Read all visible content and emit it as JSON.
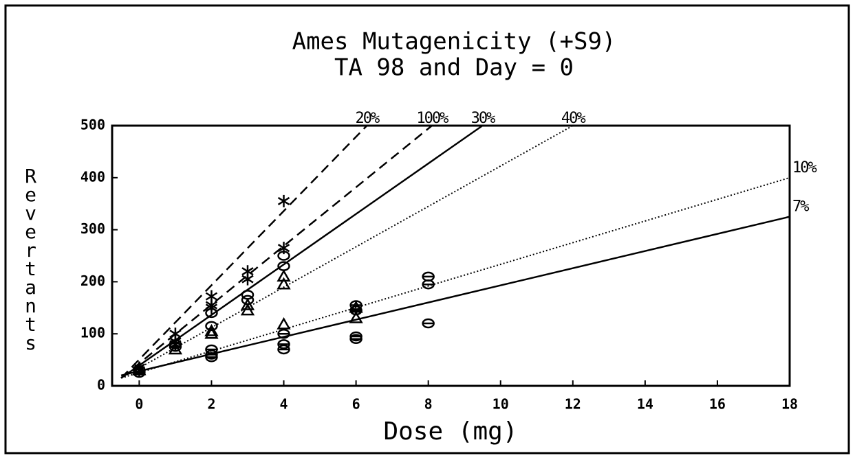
{
  "chart_data": {
    "type": "scatter",
    "title": "Ames Mutagenicity (+S9)",
    "subtitle": "TA 98 and Day = 0",
    "x_label": "Dose (mg)",
    "y_label": "Revertants",
    "xlim": [
      -0.75,
      18
    ],
    "ylim": [
      0,
      500
    ],
    "xticks": [
      0,
      2,
      4,
      6,
      8,
      10,
      12,
      14,
      16,
      18
    ],
    "yticks": [
      0,
      100,
      200,
      300,
      400,
      500
    ],
    "color": "#000000",
    "lines": [
      {
        "label": "20%",
        "style": "dashed",
        "x": [
          -0.5,
          6.3
        ],
        "y": [
          15,
          500
        ]
      },
      {
        "label": "100%",
        "style": "dashed",
        "x": [
          -0.5,
          8.1
        ],
        "y": [
          15,
          500
        ]
      },
      {
        "label": "30%",
        "style": "solid",
        "x": [
          -0.5,
          9.5
        ],
        "y": [
          15,
          500
        ]
      },
      {
        "label": "40%",
        "style": "dotted",
        "x": [
          -0.5,
          12
        ],
        "y": [
          15,
          500
        ]
      },
      {
        "label": "10%",
        "style": "dotted",
        "x": [
          -0.5,
          18
        ],
        "y": [
          15,
          400
        ]
      },
      {
        "label": "7%",
        "style": "solid",
        "x": [
          -0.5,
          18
        ],
        "y": [
          20,
          325
        ]
      }
    ],
    "points": [
      {
        "marker": "asterisk",
        "x": [
          0,
          0,
          1,
          1,
          1,
          2,
          2,
          2,
          3,
          3,
          4,
          4
        ],
        "y": [
          35,
          30,
          100,
          85,
          80,
          172,
          150,
          155,
          220,
          205,
          355,
          265
        ]
      },
      {
        "marker": "circle",
        "x": [
          0,
          1,
          1,
          2,
          2,
          3,
          3,
          4,
          4
        ],
        "y": [
          30,
          80,
          75,
          140,
          115,
          175,
          165,
          250,
          230
        ]
      },
      {
        "marker": "triangle",
        "x": [
          0,
          1,
          2,
          2,
          3,
          3,
          4,
          4,
          4,
          6,
          6
        ],
        "y": [
          30,
          70,
          105,
          100,
          155,
          145,
          210,
          195,
          118,
          150,
          130
        ]
      },
      {
        "marker": "circle-bar",
        "x": [
          0,
          2,
          2,
          2,
          4,
          4,
          4,
          6,
          6,
          6,
          6,
          8,
          8,
          8
        ],
        "y": [
          25,
          70,
          60,
          55,
          100,
          80,
          70,
          155,
          145,
          95,
          90,
          210,
          195,
          120
        ]
      }
    ]
  }
}
